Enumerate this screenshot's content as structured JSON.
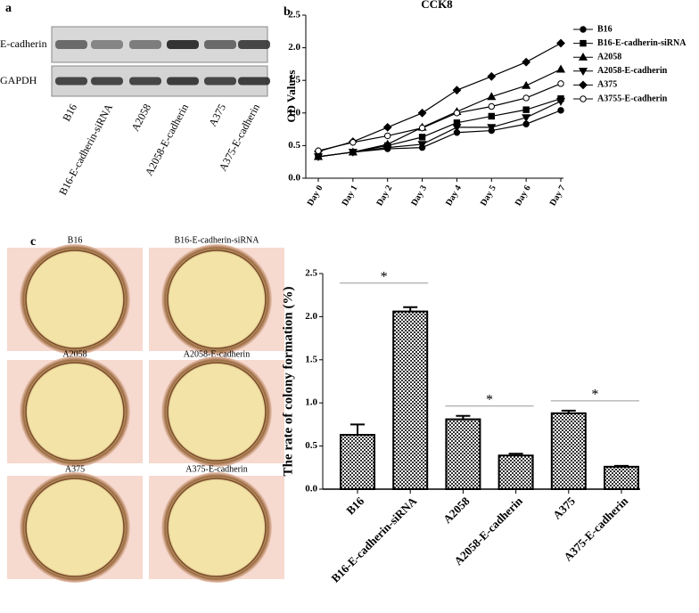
{
  "panels": {
    "a": "a",
    "b": "b",
    "c": "c"
  },
  "blot": {
    "bands": [
      "E-cadherin",
      "GAPDH"
    ],
    "lanes": [
      "B16",
      "B16-E-cadherin-siRNA",
      "A2058",
      "A2058-E-cadherin",
      "A375",
      "A375-E-cadherin"
    ]
  },
  "plates": [
    "B16",
    "B16-E-cadherin-siRNA",
    "A2058",
    "A2058-E-cadherin",
    "A375",
    "A375-E-cadherin"
  ],
  "chart_data": [
    {
      "type": "line",
      "title": "CCK8",
      "y_label": "OD Values",
      "categories": [
        "Day 0",
        "Day 1",
        "Day 2",
        "Day 3",
        "Day 4",
        "Day 5",
        "Day 6",
        "Day 7"
      ],
      "ylim": [
        0,
        2.5
      ],
      "yticks": [
        {
          "value": 0,
          "label": "0.0"
        },
        0.5,
        {
          "value": 1,
          "label": "1.0"
        },
        1.5,
        {
          "value": 2,
          "label": "2.0"
        },
        2.5
      ],
      "series": [
        {
          "name": "B16",
          "marker": "circle",
          "color": "#000000",
          "values": [
            0.33,
            0.4,
            0.45,
            0.47,
            0.7,
            0.73,
            0.83,
            1.04
          ]
        },
        {
          "name": "B16-E-cadherin-siRNA",
          "marker": "square",
          "color": "#000000",
          "values": [
            0.33,
            0.4,
            0.5,
            0.63,
            0.85,
            0.95,
            1.05,
            1.22
          ]
        },
        {
          "name": "A2058",
          "marker": "triangle",
          "color": "#000000",
          "values": [
            0.33,
            0.4,
            0.52,
            0.78,
            1.02,
            1.25,
            1.42,
            1.67
          ]
        },
        {
          "name": "A2058-E-cadherin",
          "marker": "triangle-down",
          "color": "#000000",
          "values": [
            0.33,
            0.4,
            0.47,
            0.52,
            0.78,
            0.78,
            0.93,
            1.18
          ]
        },
        {
          "name": "A375",
          "marker": "diamond",
          "color": "#000000",
          "values": [
            0.41,
            0.56,
            0.78,
            1.0,
            1.35,
            1.56,
            1.78,
            2.07
          ]
        },
        {
          "name": "A3755-E-cadherin",
          "marker": "open-circle",
          "color": "#000000",
          "values": [
            0.42,
            0.55,
            0.65,
            0.77,
            1.0,
            1.1,
            1.23,
            1.45
          ]
        }
      ]
    },
    {
      "type": "bar",
      "y_label": "The rate of colony formation (%)",
      "categories": [
        "B16",
        "B16-E-cadherin-siRNA",
        "A2058",
        "A2058-E-cadherin",
        "A375",
        "A375-E-cadherin"
      ],
      "values": [
        0.63,
        2.06,
        0.81,
        0.39,
        0.88,
        0.26
      ],
      "errors": [
        0.12,
        0.05,
        0.04,
        0.02,
        0.03,
        0.01
      ],
      "ylim": [
        0,
        2.5
      ],
      "yticks": [
        {
          "value": 0,
          "label": "0.0"
        },
        0.5,
        {
          "value": 1,
          "label": "1.0"
        },
        1.5,
        {
          "value": 2,
          "label": "2.0"
        },
        2.5
      ],
      "annotations": [
        "*",
        "*",
        "*"
      ]
    }
  ]
}
